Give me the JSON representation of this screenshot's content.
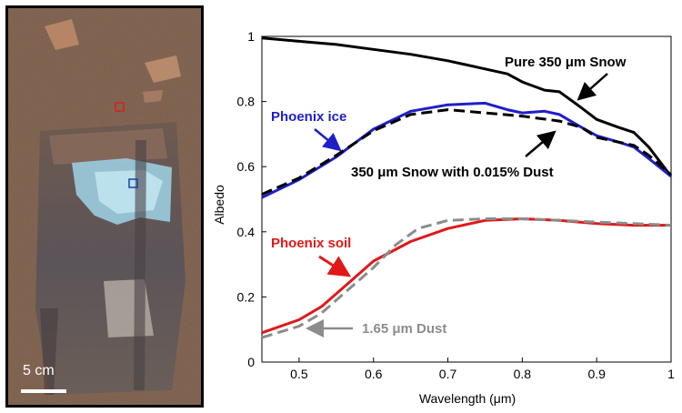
{
  "photo": {
    "scale_label": "5 cm",
    "colors": {
      "soil": "#8c6a55",
      "ice": "#9fd3e8",
      "red_marker": "#d62020",
      "blue_marker": "#1f3fa8"
    }
  },
  "chart_data": {
    "type": "line",
    "xlabel": "Wavelength (μm)",
    "ylabel": "Albedo",
    "xlim": [
      0.45,
      1.0
    ],
    "ylim": [
      0,
      1.0
    ],
    "xticks": [
      "0.5",
      "0.6",
      "0.7",
      "0.8",
      "0.9",
      "1"
    ],
    "yticks": [
      "0",
      "0.2",
      "0.4",
      "0.6",
      "0.8",
      "1"
    ],
    "grid": false,
    "series": [
      {
        "color": "#000000",
        "style": "solid",
        "x": [
          0.45,
          0.5,
          0.55,
          0.6,
          0.65,
          0.7,
          0.75,
          0.78,
          0.8,
          0.83,
          0.85,
          0.88,
          0.9,
          0.93,
          0.95,
          0.97,
          1.0
        ],
        "y": [
          0.995,
          0.985,
          0.975,
          0.96,
          0.945,
          0.925,
          0.9,
          0.885,
          0.86,
          0.835,
          0.83,
          0.78,
          0.745,
          0.72,
          0.705,
          0.66,
          0.57
        ]
      },
      {
        "color": "#1f1fc8",
        "style": "solid",
        "x": [
          0.45,
          0.5,
          0.55,
          0.6,
          0.65,
          0.7,
          0.75,
          0.78,
          0.8,
          0.83,
          0.85,
          0.88,
          0.9,
          0.93,
          0.95,
          0.97,
          1.0
        ],
        "y": [
          0.505,
          0.56,
          0.63,
          0.715,
          0.77,
          0.79,
          0.795,
          0.775,
          0.765,
          0.77,
          0.76,
          0.72,
          0.695,
          0.675,
          0.66,
          0.625,
          0.57
        ]
      },
      {
        "color": "#000000",
        "style": "dashed",
        "x": [
          0.45,
          0.5,
          0.55,
          0.6,
          0.65,
          0.7,
          0.75,
          0.8,
          0.85,
          0.88,
          0.9,
          0.95,
          0.97,
          1.0
        ],
        "y": [
          0.515,
          0.565,
          0.635,
          0.71,
          0.76,
          0.775,
          0.765,
          0.755,
          0.74,
          0.72,
          0.69,
          0.665,
          0.635,
          0.575
        ]
      },
      {
        "color": "#e01818",
        "style": "solid",
        "x": [
          0.45,
          0.5,
          0.53,
          0.56,
          0.6,
          0.65,
          0.7,
          0.75,
          0.8,
          0.85,
          0.9,
          0.95,
          1.0
        ],
        "y": [
          0.09,
          0.13,
          0.17,
          0.23,
          0.31,
          0.37,
          0.41,
          0.435,
          0.44,
          0.435,
          0.425,
          0.42,
          0.42
        ]
      },
      {
        "color": "#8c8c8c",
        "style": "dashed",
        "x": [
          0.45,
          0.5,
          0.53,
          0.56,
          0.6,
          0.63,
          0.66,
          0.7,
          0.75,
          0.8,
          0.85,
          0.9,
          0.95,
          1.0
        ],
        "y": [
          0.075,
          0.11,
          0.15,
          0.21,
          0.29,
          0.36,
          0.41,
          0.435,
          0.44,
          0.44,
          0.435,
          0.43,
          0.425,
          0.42
        ]
      }
    ],
    "annotations": [
      {
        "text": "Pure 350 μm Snow",
        "color": "#000000"
      },
      {
        "text": "Phoenix ice",
        "color": "#1f1fc8"
      },
      {
        "text": "350 μm Snow with 0.015% Dust",
        "color": "#000000"
      },
      {
        "text": "Phoenix soil",
        "color": "#e01818"
      },
      {
        "text": "1.65 μm Dust",
        "color": "#8c8c8c"
      }
    ]
  }
}
